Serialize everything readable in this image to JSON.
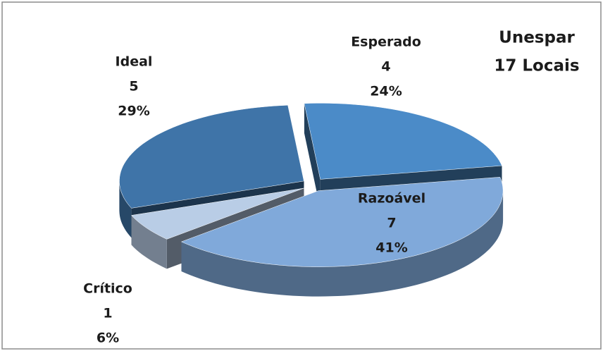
{
  "chart_data": {
    "type": "pie3d",
    "title": "Unespar",
    "subtitle": "17 Locais",
    "categories": [
      "Esperado",
      "Razoável",
      "Crítico",
      "Ideal"
    ],
    "values": [
      4,
      7,
      1,
      5
    ],
    "value_labels": [
      "24%",
      "41%",
      "6%",
      "29%"
    ],
    "colors": [
      "#4b8bc8",
      "#80a9da",
      "#b9cde6",
      "#3f74a8"
    ]
  }
}
